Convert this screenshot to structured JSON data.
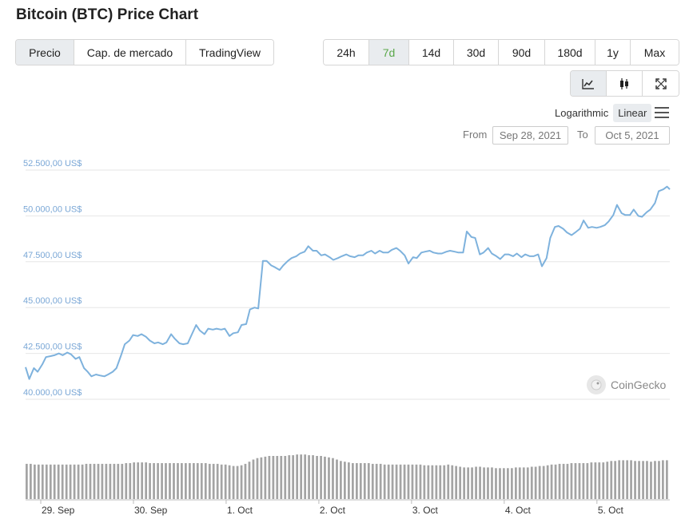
{
  "header": {
    "title": "Bitcoin (BTC) Price Chart"
  },
  "view_tabs": [
    {
      "label": "Precio",
      "active": true
    },
    {
      "label": "Cap. de mercado",
      "active": false
    },
    {
      "label": "TradingView",
      "active": false
    }
  ],
  "range_tabs": [
    {
      "label": "24h",
      "active": false
    },
    {
      "label": "7d",
      "active": true
    },
    {
      "label": "14d",
      "active": false
    },
    {
      "label": "30d",
      "active": false
    },
    {
      "label": "90d",
      "active": false
    },
    {
      "label": "180d",
      "active": false
    },
    {
      "label": "1y",
      "active": false
    },
    {
      "label": "Max",
      "active": false
    }
  ],
  "chart_style_icons": [
    "line-chart-icon",
    "candlestick-icon",
    "expand-icon"
  ],
  "scale": {
    "log_label": "Logarithmic",
    "linear_label": "Linear",
    "selected": "Linear"
  },
  "date_range": {
    "from_label": "From",
    "from_value": "Sep 28, 2021",
    "to_label": "To",
    "to_value": "Oct 5, 2021"
  },
  "watermark": "CoinGecko",
  "colors": {
    "line": "#7eb2dd",
    "volume": "#a4a4a4",
    "grid": "#e6e6e6",
    "active_tab_text": "#5aa84a"
  },
  "chart_data": {
    "type": "line",
    "y_tick_labels": [
      "52.500,00 US$",
      "50.000,00 US$",
      "47.500,00 US$",
      "45.000,00 US$",
      "42.500,00 US$",
      "40.000,00 US$"
    ],
    "y_ticks": [
      52500,
      50000,
      47500,
      45000,
      42500,
      40000
    ],
    "ylim": [
      40000,
      52500
    ],
    "x_tick_labels": [
      "29. Sep",
      "30. Sep",
      "1. Oct",
      "2. Oct",
      "3. Oct",
      "4. Oct",
      "5. Oct"
    ],
    "x_ticks": [
      0.25,
      1.25,
      2.25,
      3.25,
      4.25,
      5.25,
      6.25
    ],
    "xlim": [
      0,
      6.95
    ],
    "grid": true,
    "series": [
      {
        "values": [
          [
            0.0,
            41750
          ],
          [
            0.04,
            41100
          ],
          [
            0.09,
            41700
          ],
          [
            0.13,
            41500
          ],
          [
            0.18,
            41900
          ],
          [
            0.22,
            42300
          ],
          [
            0.27,
            42350
          ],
          [
            0.31,
            42400
          ],
          [
            0.36,
            42500
          ],
          [
            0.4,
            42400
          ],
          [
            0.45,
            42550
          ],
          [
            0.49,
            42450
          ],
          [
            0.54,
            42200
          ],
          [
            0.58,
            42300
          ],
          [
            0.63,
            41700
          ],
          [
            0.67,
            41500
          ],
          [
            0.71,
            41250
          ],
          [
            0.76,
            41350
          ],
          [
            0.8,
            41300
          ],
          [
            0.85,
            41250
          ],
          [
            0.89,
            41350
          ],
          [
            0.94,
            41500
          ],
          [
            0.98,
            41700
          ],
          [
            1.03,
            42400
          ],
          [
            1.07,
            43000
          ],
          [
            1.12,
            43200
          ],
          [
            1.16,
            43500
          ],
          [
            1.21,
            43450
          ],
          [
            1.25,
            43550
          ],
          [
            1.3,
            43400
          ],
          [
            1.34,
            43200
          ],
          [
            1.39,
            43050
          ],
          [
            1.43,
            43100
          ],
          [
            1.48,
            43000
          ],
          [
            1.52,
            43100
          ],
          [
            1.57,
            43550
          ],
          [
            1.61,
            43300
          ],
          [
            1.66,
            43050
          ],
          [
            1.7,
            43000
          ],
          [
            1.75,
            43050
          ],
          [
            1.79,
            43500
          ],
          [
            1.84,
            44050
          ],
          [
            1.88,
            43750
          ],
          [
            1.93,
            43550
          ],
          [
            1.97,
            43850
          ],
          [
            2.02,
            43800
          ],
          [
            2.06,
            43850
          ],
          [
            2.11,
            43800
          ],
          [
            2.15,
            43850
          ],
          [
            2.2,
            43450
          ],
          [
            2.24,
            43600
          ],
          [
            2.29,
            43650
          ],
          [
            2.33,
            44050
          ],
          [
            2.38,
            44100
          ],
          [
            2.42,
            44900
          ],
          [
            2.47,
            45000
          ],
          [
            2.51,
            44950
          ],
          [
            2.56,
            47550
          ],
          [
            2.6,
            47550
          ],
          [
            2.65,
            47300
          ],
          [
            2.69,
            47200
          ],
          [
            2.74,
            47050
          ],
          [
            2.78,
            47300
          ],
          [
            2.83,
            47550
          ],
          [
            2.87,
            47700
          ],
          [
            2.92,
            47800
          ],
          [
            2.96,
            47950
          ],
          [
            3.01,
            48050
          ],
          [
            3.05,
            48350
          ],
          [
            3.1,
            48100
          ],
          [
            3.14,
            48100
          ],
          [
            3.19,
            47850
          ],
          [
            3.23,
            47900
          ],
          [
            3.28,
            47750
          ],
          [
            3.32,
            47600
          ],
          [
            3.37,
            47700
          ],
          [
            3.41,
            47800
          ],
          [
            3.46,
            47900
          ],
          [
            3.5,
            47800
          ],
          [
            3.55,
            47750
          ],
          [
            3.59,
            47850
          ],
          [
            3.64,
            47850
          ],
          [
            3.68,
            48000
          ],
          [
            3.73,
            48100
          ],
          [
            3.77,
            47950
          ],
          [
            3.82,
            48100
          ],
          [
            3.86,
            48000
          ],
          [
            3.91,
            48000
          ],
          [
            3.95,
            48150
          ],
          [
            4.0,
            48250
          ],
          [
            4.04,
            48100
          ],
          [
            4.09,
            47850
          ],
          [
            4.13,
            47400
          ],
          [
            4.18,
            47750
          ],
          [
            4.22,
            47700
          ],
          [
            4.27,
            48000
          ],
          [
            4.31,
            48050
          ],
          [
            4.36,
            48100
          ],
          [
            4.4,
            48000
          ],
          [
            4.45,
            47950
          ],
          [
            4.49,
            47950
          ],
          [
            4.54,
            48050
          ],
          [
            4.58,
            48100
          ],
          [
            4.63,
            48050
          ],
          [
            4.67,
            48000
          ],
          [
            4.72,
            48000
          ],
          [
            4.76,
            49150
          ],
          [
            4.81,
            48850
          ],
          [
            4.85,
            48800
          ],
          [
            4.9,
            47900
          ],
          [
            4.94,
            48000
          ],
          [
            4.99,
            48250
          ],
          [
            5.03,
            47950
          ],
          [
            5.08,
            47800
          ],
          [
            5.12,
            47650
          ],
          [
            5.17,
            47900
          ],
          [
            5.21,
            47900
          ],
          [
            5.26,
            47800
          ],
          [
            5.3,
            47950
          ],
          [
            5.35,
            47750
          ],
          [
            5.39,
            47900
          ],
          [
            5.44,
            47800
          ],
          [
            5.48,
            47800
          ],
          [
            5.53,
            47900
          ],
          [
            5.57,
            47250
          ],
          [
            5.62,
            47700
          ],
          [
            5.66,
            48800
          ],
          [
            5.71,
            49400
          ],
          [
            5.75,
            49450
          ],
          [
            5.8,
            49300
          ],
          [
            5.84,
            49100
          ],
          [
            5.89,
            48950
          ],
          [
            5.93,
            49100
          ],
          [
            5.98,
            49300
          ],
          [
            6.02,
            49750
          ],
          [
            6.07,
            49350
          ],
          [
            6.11,
            49400
          ],
          [
            6.16,
            49350
          ],
          [
            6.2,
            49400
          ],
          [
            6.25,
            49500
          ],
          [
            6.29,
            49700
          ],
          [
            6.34,
            50050
          ],
          [
            6.38,
            50600
          ],
          [
            6.43,
            50150
          ],
          [
            6.47,
            50050
          ],
          [
            6.52,
            50050
          ],
          [
            6.56,
            50350
          ],
          [
            6.61,
            50000
          ],
          [
            6.65,
            49950
          ],
          [
            6.7,
            50200
          ],
          [
            6.74,
            50350
          ],
          [
            6.79,
            50700
          ],
          [
            6.83,
            51350
          ],
          [
            6.88,
            51450
          ],
          [
            6.92,
            51600
          ],
          [
            6.95,
            51450
          ]
        ]
      }
    ],
    "volume": [
      49,
      49,
      48,
      48,
      48,
      48,
      48,
      48,
      48,
      48,
      48,
      48,
      48,
      48,
      48,
      49,
      49,
      49,
      49,
      49,
      49,
      49,
      49,
      49,
      49,
      50,
      50,
      51,
      51,
      51,
      51,
      50,
      50,
      50,
      50,
      50,
      50,
      50,
      50,
      50,
      50,
      50,
      50,
      50,
      50,
      50,
      49,
      49,
      49,
      48,
      48,
      47,
      46,
      46,
      47,
      49,
      52,
      55,
      57,
      58,
      59,
      60,
      60,
      60,
      60,
      60,
      61,
      61,
      62,
      62,
      62,
      61,
      61,
      60,
      60,
      59,
      58,
      57,
      55,
      53,
      52,
      51,
      50,
      50,
      50,
      50,
      50,
      49,
      49,
      49,
      48,
      48,
      48,
      48,
      48,
      48,
      48,
      48,
      48,
      48,
      47,
      47,
      47,
      47,
      47,
      47,
      48,
      47,
      46,
      45,
      44,
      44,
      44,
      45,
      45,
      44,
      44,
      44,
      43,
      43,
      43,
      43,
      43,
      44,
      44,
      44,
      44,
      45,
      45,
      46,
      46,
      47,
      48,
      48,
      49,
      49,
      49,
      50,
      50,
      50,
      50,
      50,
      51,
      51,
      51,
      51,
      52,
      53,
      53,
      54,
      54,
      54,
      54,
      53,
      53,
      53,
      53,
      52,
      53,
      53,
      54,
      54
    ]
  }
}
